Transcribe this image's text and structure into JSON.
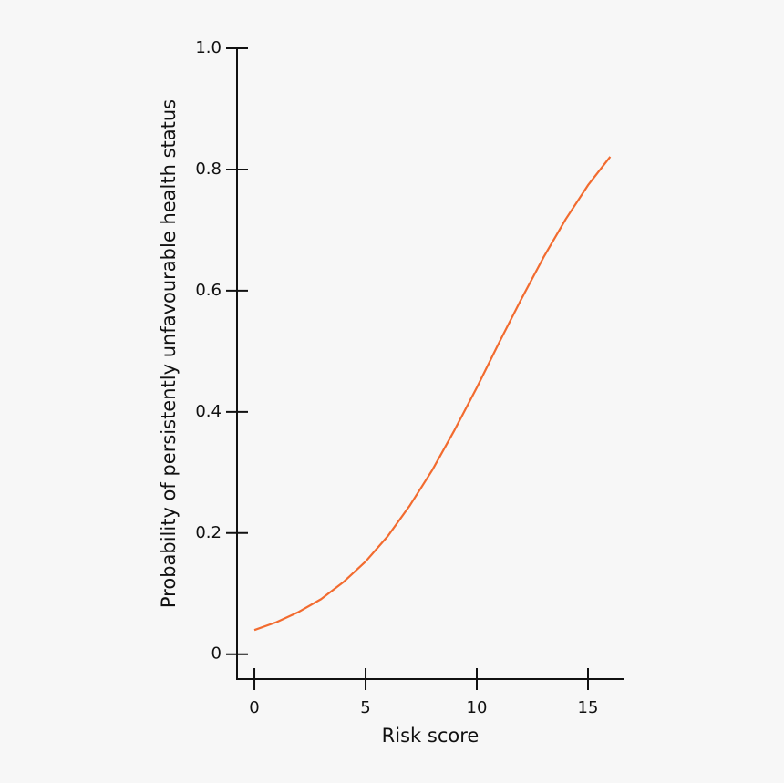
{
  "chart_data": {
    "type": "line",
    "x_label": "Risk score",
    "y_label": "Probability of persistently unfavourable health status",
    "x": [
      0,
      1,
      2,
      3,
      4,
      5,
      6,
      7,
      8,
      9,
      10,
      11,
      12,
      13,
      14,
      15,
      16
    ],
    "series": [
      {
        "color": "#f26b2f",
        "values": [
          0.04,
          0.053,
          0.07,
          0.091,
          0.119,
          0.153,
          0.195,
          0.246,
          0.304,
          0.37,
          0.44,
          0.514,
          0.586,
          0.655,
          0.718,
          0.774,
          0.821
        ]
      }
    ],
    "xlim": [
      -0.78,
      16.64
    ],
    "xticks": [
      0,
      5,
      10,
      15
    ],
    "ylim": [
      -0.041,
      1
    ],
    "yticks": [
      0,
      0.2,
      0.4,
      0.6,
      0.8,
      {
        "value": 1,
        "label": "1.0"
      }
    ]
  }
}
